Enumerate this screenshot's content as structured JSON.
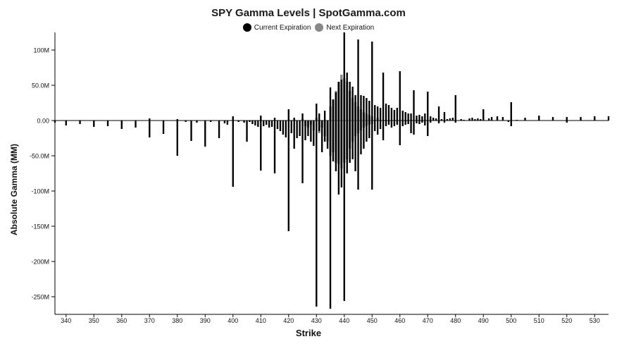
{
  "chart_data": {
    "type": "bar",
    "title": "SPY Gamma Levels | SpotGamma.com",
    "xlabel": "Strike",
    "ylabel": "Absolute Gamma (MM)",
    "legend": {
      "placement": "top-center",
      "entries": [
        {
          "name": "Current Expiration",
          "color": "#000000"
        },
        {
          "name": "Next Expiration",
          "color": "#888888"
        }
      ]
    },
    "xlim": [
      336,
      535
    ],
    "ylim": [
      -275,
      125
    ],
    "y_ticks": [
      {
        "value": 100,
        "label": "100M"
      },
      {
        "value": 50,
        "label": "50.0M"
      },
      {
        "value": 0,
        "label": "0.00"
      },
      {
        "value": -50,
        "label": "-50.0M"
      },
      {
        "value": -100,
        "label": "-100M"
      },
      {
        "value": -150,
        "label": "-150M"
      },
      {
        "value": -200,
        "label": "-200M"
      },
      {
        "value": -250,
        "label": "-250M"
      }
    ],
    "x_ticks": [
      340,
      350,
      360,
      370,
      380,
      390,
      400,
      410,
      420,
      430,
      440,
      450,
      460,
      470,
      480,
      490,
      500,
      510,
      520,
      530
    ],
    "grid": false,
    "series": [
      {
        "name": "Current Expiration",
        "color": "#000000",
        "points": [
          [
            336,
            -3
          ],
          [
            340,
            -7
          ],
          [
            345,
            -5
          ],
          [
            350,
            -9
          ],
          [
            355,
            -8
          ],
          [
            360,
            -12
          ],
          [
            365,
            -10
          ],
          [
            370,
            -24
          ],
          [
            370,
            3
          ],
          [
            375,
            -19
          ],
          [
            380,
            -50
          ],
          [
            380,
            2
          ],
          [
            383,
            -2
          ],
          [
            385,
            -29
          ],
          [
            387,
            -3
          ],
          [
            390,
            -37
          ],
          [
            392,
            -2
          ],
          [
            395,
            -25
          ],
          [
            397,
            -4
          ],
          [
            398,
            -6
          ],
          [
            400,
            -94
          ],
          [
            400,
            6
          ],
          [
            402,
            -2
          ],
          [
            404,
            -3
          ],
          [
            405,
            -30
          ],
          [
            406,
            -2
          ],
          [
            407,
            -5
          ],
          [
            408,
            -7
          ],
          [
            409,
            -9
          ],
          [
            410,
            -71
          ],
          [
            410,
            7
          ],
          [
            411,
            -8
          ],
          [
            412,
            -6
          ],
          [
            413,
            -10
          ],
          [
            414,
            -9
          ],
          [
            415,
            -75
          ],
          [
            415,
            4
          ],
          [
            416,
            -12
          ],
          [
            417,
            -15
          ],
          [
            418,
            -20
          ],
          [
            419,
            -24
          ],
          [
            420,
            -157
          ],
          [
            420,
            16
          ],
          [
            421,
            -18
          ],
          [
            422,
            -40
          ],
          [
            422,
            4
          ],
          [
            423,
            -25
          ],
          [
            424,
            -22
          ],
          [
            425,
            -89
          ],
          [
            425,
            10
          ],
          [
            426,
            -28
          ],
          [
            427,
            -22
          ],
          [
            428,
            -30
          ],
          [
            429,
            -36
          ],
          [
            430,
            -264
          ],
          [
            430,
            24
          ],
          [
            431,
            -15
          ],
          [
            431,
            10
          ],
          [
            432,
            -45
          ],
          [
            433,
            -30
          ],
          [
            433,
            14
          ],
          [
            434,
            -40
          ],
          [
            435,
            -267
          ],
          [
            435,
            47
          ],
          [
            436,
            -58
          ],
          [
            436,
            30
          ],
          [
            437,
            -72
          ],
          [
            437,
            40
          ],
          [
            438,
            -105
          ],
          [
            438,
            55
          ],
          [
            439,
            -95
          ],
          [
            439,
            58
          ],
          [
            440,
            -256
          ],
          [
            440,
            125
          ],
          [
            441,
            -75
          ],
          [
            441,
            68
          ],
          [
            442,
            -60
          ],
          [
            442,
            55
          ],
          [
            443,
            -55
          ],
          [
            443,
            48
          ],
          [
            444,
            -72
          ],
          [
            444,
            36
          ],
          [
            445,
            -98
          ],
          [
            445,
            115
          ],
          [
            446,
            -48
          ],
          [
            446,
            36
          ],
          [
            447,
            -40
          ],
          [
            447,
            35
          ],
          [
            448,
            -30
          ],
          [
            448,
            32
          ],
          [
            449,
            -25
          ],
          [
            449,
            28
          ],
          [
            450,
            -98
          ],
          [
            450,
            112
          ],
          [
            451,
            -15
          ],
          [
            451,
            22
          ],
          [
            452,
            -20
          ],
          [
            452,
            20
          ],
          [
            453,
            -12
          ],
          [
            453,
            18
          ],
          [
            454,
            -28
          ],
          [
            454,
            68
          ],
          [
            455,
            -8
          ],
          [
            455,
            24
          ],
          [
            456,
            -6
          ],
          [
            456,
            22
          ],
          [
            457,
            -10
          ],
          [
            457,
            18
          ],
          [
            458,
            -8
          ],
          [
            458,
            15
          ],
          [
            459,
            -6
          ],
          [
            459,
            18
          ],
          [
            460,
            -35
          ],
          [
            460,
            70
          ],
          [
            461,
            -8
          ],
          [
            461,
            14
          ],
          [
            462,
            -6
          ],
          [
            462,
            12
          ],
          [
            463,
            -5
          ],
          [
            463,
            10
          ],
          [
            464,
            -18
          ],
          [
            464,
            10
          ],
          [
            465,
            -20
          ],
          [
            465,
            43
          ],
          [
            466,
            -4
          ],
          [
            466,
            7
          ],
          [
            467,
            -5
          ],
          [
            467,
            8
          ],
          [
            468,
            -3
          ],
          [
            468,
            6
          ],
          [
            469,
            -7
          ],
          [
            469,
            10
          ],
          [
            470,
            -22
          ],
          [
            470,
            41
          ],
          [
            471,
            -3
          ],
          [
            471,
            6
          ],
          [
            472,
            4
          ],
          [
            473,
            3
          ],
          [
            474,
            -4
          ],
          [
            474,
            20
          ],
          [
            475,
            2
          ],
          [
            476,
            -3
          ],
          [
            476,
            12
          ],
          [
            477,
            2
          ],
          [
            478,
            3
          ],
          [
            479,
            4
          ],
          [
            480,
            -3
          ],
          [
            480,
            36
          ],
          [
            482,
            2
          ],
          [
            483,
            1
          ],
          [
            485,
            3
          ],
          [
            486,
            4
          ],
          [
            487,
            2
          ],
          [
            488,
            3
          ],
          [
            489,
            2
          ],
          [
            490,
            16
          ],
          [
            492,
            3
          ],
          [
            493,
            5
          ],
          [
            495,
            6
          ],
          [
            497,
            5
          ],
          [
            499,
            -2
          ],
          [
            500,
            -8
          ],
          [
            500,
            26
          ],
          [
            502,
            1
          ],
          [
            505,
            4
          ],
          [
            510,
            7
          ],
          [
            515,
            5
          ],
          [
            520,
            -3
          ],
          [
            520,
            5
          ],
          [
            525,
            5
          ],
          [
            530,
            6
          ],
          [
            535,
            6
          ]
        ]
      },
      {
        "name": "Next Expiration",
        "color": "#888888",
        "points": [
          [
            425,
            2
          ],
          [
            426,
            -8
          ],
          [
            427,
            -10
          ],
          [
            428,
            -6
          ],
          [
            429,
            -14
          ],
          [
            430,
            4
          ],
          [
            431,
            -18
          ],
          [
            432,
            -10
          ],
          [
            433,
            -22
          ],
          [
            434,
            -30
          ],
          [
            435,
            -50
          ],
          [
            435,
            20
          ],
          [
            436,
            -45
          ],
          [
            436,
            30
          ],
          [
            437,
            -60
          ],
          [
            437,
            42
          ],
          [
            438,
            -62
          ],
          [
            438,
            55
          ],
          [
            439,
            -68
          ],
          [
            439,
            65
          ],
          [
            440,
            -60
          ],
          [
            440,
            60
          ],
          [
            441,
            -55
          ],
          [
            441,
            55
          ],
          [
            442,
            -40
          ],
          [
            442,
            42
          ],
          [
            443,
            -30
          ],
          [
            443,
            32
          ],
          [
            444,
            -22
          ],
          [
            444,
            26
          ],
          [
            445,
            -18
          ],
          [
            445,
            20
          ],
          [
            446,
            -14
          ],
          [
            446,
            16
          ],
          [
            447,
            -10
          ],
          [
            447,
            12
          ],
          [
            448,
            -8
          ],
          [
            448,
            10
          ],
          [
            449,
            -6
          ],
          [
            449,
            8
          ],
          [
            450,
            -5
          ],
          [
            450,
            6
          ],
          [
            452,
            4
          ]
        ]
      }
    ]
  }
}
